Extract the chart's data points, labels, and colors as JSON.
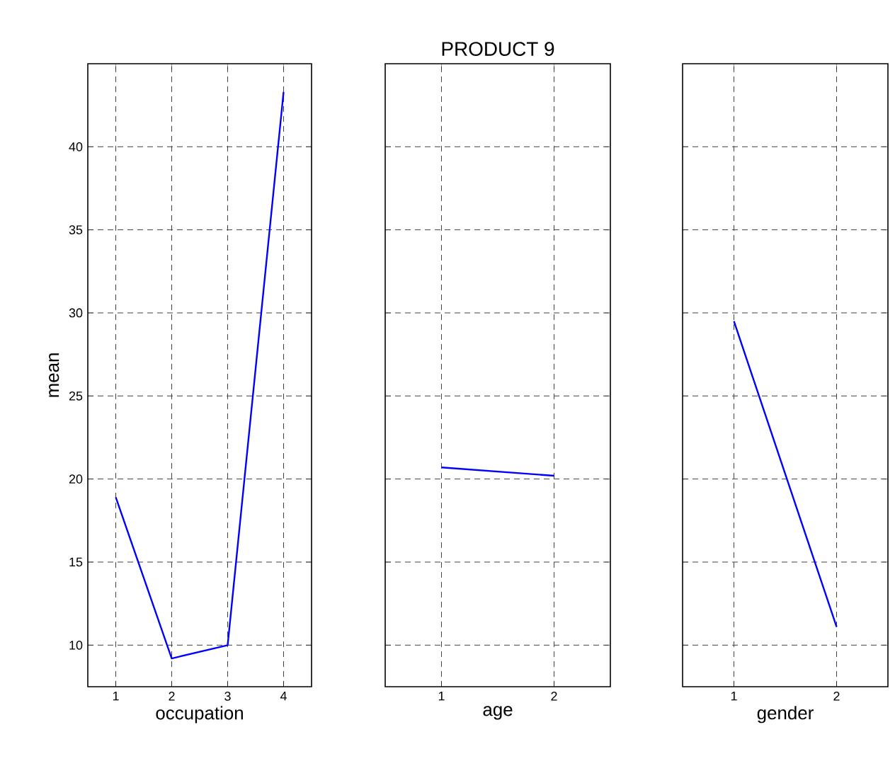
{
  "chart_data": [
    {
      "type": "line",
      "xlabel": "occupation",
      "ylabel": "mean",
      "x": [
        1,
        2,
        3,
        4
      ],
      "values": [
        18.9,
        9.2,
        10.0,
        43.3
      ],
      "color": "#0000ff",
      "xlim": [
        0.5,
        4.5
      ],
      "xticks": [
        1,
        2,
        3,
        4
      ],
      "ylim": [
        7.5,
        45
      ],
      "yticks": [
        10,
        15,
        20,
        25,
        30,
        35,
        40
      ],
      "grid": true
    },
    {
      "type": "line",
      "title": "PRODUCT 9",
      "xlabel": "age",
      "x": [
        1,
        2
      ],
      "values": [
        20.7,
        20.2
      ],
      "color": "#0000ff",
      "xlim": [
        0.5,
        2.5
      ],
      "xticks": [
        1,
        2
      ],
      "ylim": [
        7.5,
        45
      ],
      "yticks": [
        10,
        15,
        20,
        25,
        30,
        35,
        40
      ],
      "grid": true,
      "tick_labels": "x"
    },
    {
      "type": "line",
      "xlabel": "gender",
      "x": [
        1,
        2
      ],
      "values": [
        29.5,
        11.1
      ],
      "color": "#0000ff",
      "xlim": [
        0.5,
        2.5
      ],
      "xticks": [
        1,
        2
      ],
      "ylim": [
        7.5,
        45
      ],
      "yticks": [
        10,
        15,
        20,
        25,
        30,
        35,
        40
      ],
      "grid": true,
      "tick_labels": "x"
    }
  ]
}
